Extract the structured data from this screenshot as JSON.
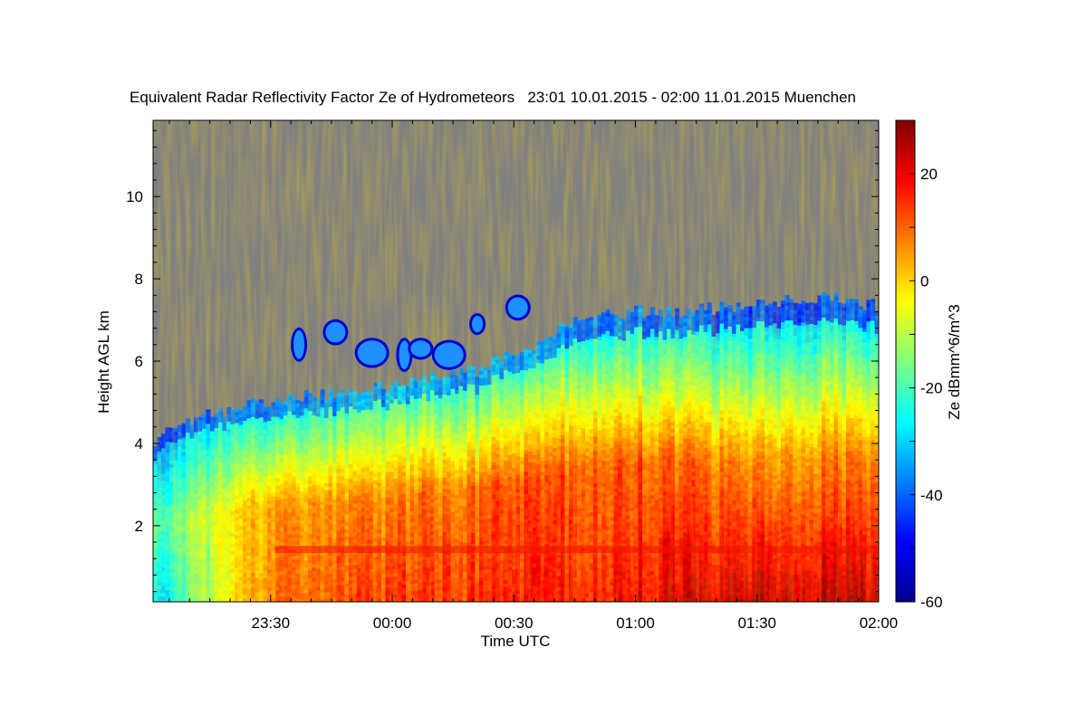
{
  "chart_data": {
    "type": "heatmap",
    "title": "Equivalent Radar Reflectivity Factor Ze of Hydrometeors   23:01 10.01.2015 - 02:00 11.01.2015 Muenchen",
    "xlabel": "Time UTC",
    "ylabel": "Height AGL km",
    "colorbar_label": "Ze dBmm^6/m^3",
    "xlim": [
      "23:01",
      "02:00"
    ],
    "ylim": [
      0.15,
      11.85
    ],
    "x_ticks": [
      "23:30",
      "00:00",
      "00:30",
      "01:00",
      "01:30",
      "02:00"
    ],
    "x_tick_minutes": [
      29,
      59,
      89,
      119,
      149,
      179
    ],
    "y_ticks": [
      2,
      4,
      6,
      8,
      10
    ],
    "clim": [
      -60,
      30
    ],
    "colorbar_ticks": [
      20,
      0,
      -20,
      -40,
      -60
    ],
    "colormap": "jet",
    "no_data_color": "#808080",
    "echo_top_km": [
      [
        0,
        4.1
      ],
      [
        10,
        4.6
      ],
      [
        20,
        4.9
      ],
      [
        30,
        5.0
      ],
      [
        40,
        5.2
      ],
      [
        50,
        5.3
      ],
      [
        60,
        5.4
      ],
      [
        70,
        5.6
      ],
      [
        80,
        5.8
      ],
      [
        90,
        6.2
      ],
      [
        100,
        6.8
      ],
      [
        110,
        7.1
      ],
      [
        120,
        7.2
      ],
      [
        130,
        7.2
      ],
      [
        140,
        7.3
      ],
      [
        150,
        7.4
      ],
      [
        160,
        7.5
      ],
      [
        170,
        7.5
      ],
      [
        179,
        7.3
      ]
    ],
    "ze_profile_dbz": [
      {
        "time_min": 0,
        "surface": -30,
        "mid": -20,
        "top": -35
      },
      {
        "time_min": 30,
        "surface": 10,
        "mid": 5,
        "top": -30
      },
      {
        "time_min": 60,
        "surface": 15,
        "mid": 8,
        "top": -25
      },
      {
        "time_min": 90,
        "surface": 18,
        "mid": 12,
        "top": -28
      },
      {
        "time_min": 120,
        "surface": 20,
        "mid": 12,
        "top": -30
      },
      {
        "time_min": 150,
        "surface": 25,
        "mid": 5,
        "top": -35
      },
      {
        "time_min": 179,
        "surface": 25,
        "mid": 8,
        "top": -33
      }
    ],
    "melting_layer_km": 1.4
  }
}
